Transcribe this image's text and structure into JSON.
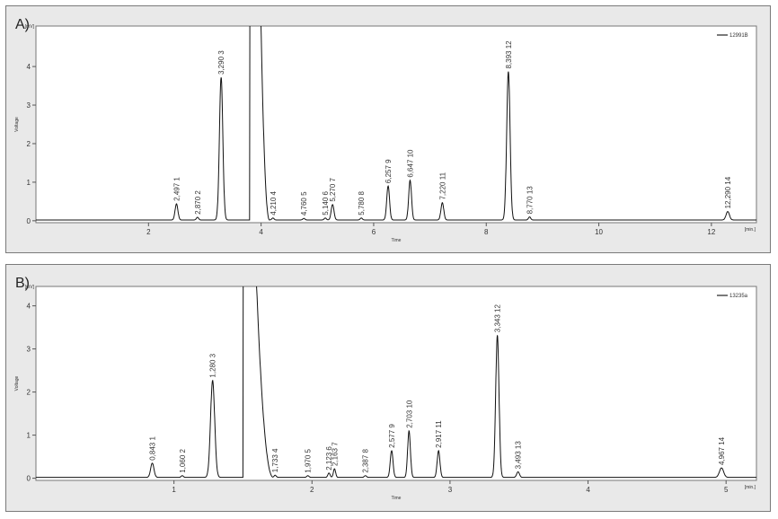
{
  "chart_data": [
    {
      "panel_label": "A)",
      "type": "line",
      "ylabel": "Voltage",
      "yunit": "[mV]",
      "xlabel": "Time",
      "xunit": "[min.]",
      "legend": "12991B",
      "xlim": [
        0,
        12.8
      ],
      "ylim": [
        -0.05,
        5.05
      ],
      "xticks": [
        2,
        4,
        6,
        8,
        10,
        12
      ],
      "yticks": [
        0,
        1,
        2,
        3,
        4
      ],
      "solvent_peak": {
        "start": 3.8,
        "end": 4.0,
        "tail_end": 4.15
      },
      "peaks": [
        {
          "rt": 2.497,
          "label": "2,497",
          "num": "1",
          "height": 0.42,
          "width": 0.025
        },
        {
          "rt": 2.87,
          "label": "2,870",
          "num": "2",
          "height": 0.07,
          "width": 0.02
        },
        {
          "rt": 3.29,
          "label": "3,290",
          "num": "3",
          "height": 3.7,
          "width": 0.03
        },
        {
          "rt": 4.21,
          "label": "4,210",
          "num": "4",
          "height": 0.05,
          "width": 0.02
        },
        {
          "rt": 4.76,
          "label": "4,760",
          "num": "5",
          "height": 0.04,
          "width": 0.02
        },
        {
          "rt": 5.14,
          "label": "5,140",
          "num": "6",
          "height": 0.05,
          "width": 0.02
        },
        {
          "rt": 5.27,
          "label": "5,270",
          "num": "7",
          "height": 0.4,
          "width": 0.025
        },
        {
          "rt": 5.78,
          "label": "5,780",
          "num": "8",
          "height": 0.05,
          "width": 0.02
        },
        {
          "rt": 6.257,
          "label": "6,257",
          "num": "9",
          "height": 0.88,
          "width": 0.025
        },
        {
          "rt": 6.647,
          "label": "6,647",
          "num": "10",
          "height": 1.03,
          "width": 0.025
        },
        {
          "rt": 7.22,
          "label": "7,220",
          "num": "11",
          "height": 0.45,
          "width": 0.025
        },
        {
          "rt": 8.393,
          "label": "8,393",
          "num": "12",
          "height": 3.85,
          "width": 0.03
        },
        {
          "rt": 8.77,
          "label": "8,770",
          "num": "13",
          "height": 0.08,
          "width": 0.02
        },
        {
          "rt": 12.29,
          "label": "12,290",
          "num": "14",
          "height": 0.22,
          "width": 0.03
        }
      ]
    },
    {
      "panel_label": "B)",
      "type": "line",
      "ylabel": "Voltage",
      "yunit": "[mV]",
      "xlabel": "Time",
      "xunit": "[min.]",
      "legend": "13235a",
      "xlim": [
        0,
        5.22
      ],
      "ylim": [
        -0.05,
        4.45
      ],
      "xticks": [
        1,
        2,
        3,
        4,
        5
      ],
      "yticks": [
        0,
        1,
        2,
        3,
        4
      ],
      "solvent_peak": {
        "start": 1.5,
        "end": 1.6,
        "tail_end": 1.72
      },
      "peaks": [
        {
          "rt": 0.843,
          "label": "0,843",
          "num": "1",
          "height": 0.33,
          "width": 0.012
        },
        {
          "rt": 1.06,
          "label": "1,060",
          "num": "2",
          "height": 0.04,
          "width": 0.008
        },
        {
          "rt": 1.28,
          "label": "1,280",
          "num": "3",
          "height": 2.25,
          "width": 0.015
        },
        {
          "rt": 1.733,
          "label": "1,733",
          "num": "4",
          "height": 0.05,
          "width": 0.008
        },
        {
          "rt": 1.97,
          "label": "1,970",
          "num": "5",
          "height": 0.04,
          "width": 0.008
        },
        {
          "rt": 2.123,
          "label": "2,123",
          "num": "6",
          "height": 0.1,
          "width": 0.008
        },
        {
          "rt": 2.163,
          "label": "2,163",
          "num": "7",
          "height": 0.2,
          "width": 0.008
        },
        {
          "rt": 2.387,
          "label": "2,387",
          "num": "8",
          "height": 0.04,
          "width": 0.008
        },
        {
          "rt": 2.577,
          "label": "2,577",
          "num": "9",
          "height": 0.62,
          "width": 0.01
        },
        {
          "rt": 2.703,
          "label": "2,703",
          "num": "10",
          "height": 1.08,
          "width": 0.01
        },
        {
          "rt": 2.917,
          "label": "2,917",
          "num": "11",
          "height": 0.62,
          "width": 0.01
        },
        {
          "rt": 3.343,
          "label": "3,343",
          "num": "12",
          "height": 3.3,
          "width": 0.012
        },
        {
          "rt": 3.493,
          "label": "3,493",
          "num": "13",
          "height": 0.13,
          "width": 0.01
        },
        {
          "rt": 4.967,
          "label": "4,967",
          "num": "14",
          "height": 0.22,
          "width": 0.015
        }
      ]
    }
  ]
}
